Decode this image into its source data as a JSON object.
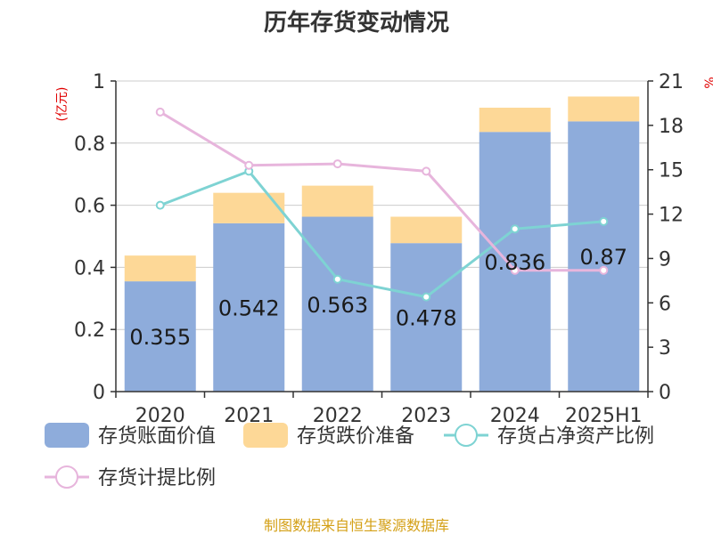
{
  "chart_data": {
    "type": "bar",
    "title": "历年存货变动情况",
    "categories": [
      "2020",
      "2021",
      "2022",
      "2023",
      "2024",
      "2025H1"
    ],
    "left_axis": {
      "unit_label": "(亿元)",
      "ylim": [
        0,
        1
      ],
      "ticks": [
        "0",
        "0.2",
        "0.4",
        "0.6",
        "0.8",
        "1"
      ]
    },
    "right_axis": {
      "unit_label": "%",
      "ylim": [
        0,
        21
      ],
      "ticks": [
        "0",
        "3",
        "6",
        "9",
        "12",
        "15",
        "18",
        "21"
      ]
    },
    "series": [
      {
        "name": "存货账面价值",
        "kind": "bar",
        "axis": "left",
        "color": "#8eacdb",
        "values": [
          0.355,
          0.542,
          0.563,
          0.478,
          0.836,
          0.87
        ],
        "labels": [
          "0.355",
          "0.542",
          "0.563",
          "0.478",
          "0.836",
          "0.87"
        ]
      },
      {
        "name": "存货跌价准备",
        "kind": "bar",
        "axis": "left",
        "stacked": true,
        "color": "#fdd897",
        "values": [
          0.083,
          0.098,
          0.1,
          0.085,
          0.078,
          0.08
        ]
      },
      {
        "name": "存货占净资产比例",
        "kind": "line",
        "axis": "right",
        "color": "#7ed3d3",
        "values": [
          12.6,
          14.9,
          7.6,
          6.4,
          11.0,
          11.5
        ]
      },
      {
        "name": "存货计提比例",
        "kind": "line",
        "axis": "right",
        "color": "#e7b5dc",
        "values": [
          18.9,
          15.3,
          15.4,
          14.9,
          8.2,
          8.2
        ]
      }
    ],
    "grid": true,
    "legend_position": "bottom"
  },
  "colors": {
    "unit_label": "#e00000",
    "source": "#d4a017",
    "axis": "#333333",
    "grid": "#cccccc"
  },
  "footer": {
    "source": "制图数据来自恒生聚源数据库"
  }
}
